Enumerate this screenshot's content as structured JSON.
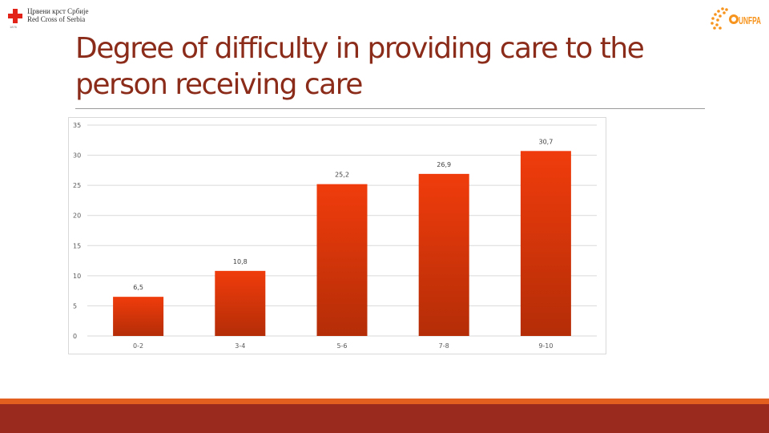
{
  "header": {
    "logo_left_line1": "Црвени крст Србије",
    "logo_left_line2": "Red Cross of Serbia",
    "logo_left_sub": "1876",
    "logo_right_text": "UNFPA",
    "title": "Degree of difficulty in providing care to the person receiving care"
  },
  "colors": {
    "title": "#8b2b19",
    "bar_top": "#f03c0c",
    "bar_bottom": "#b42d07",
    "unfpa": "#f7941d",
    "footer": "#9a2a1e"
  },
  "chart_data": {
    "type": "bar",
    "title": "",
    "xlabel": "",
    "ylabel": "",
    "categories": [
      "0-2",
      "3-4",
      "5-6",
      "7-8",
      "9-10"
    ],
    "values": [
      6.5,
      10.8,
      25.2,
      26.9,
      30.7
    ],
    "value_labels": [
      "6,5",
      "10,8",
      "25,2",
      "26,9",
      "30,7"
    ],
    "ylim": [
      0,
      35
    ],
    "yticks": [
      0,
      5,
      10,
      15,
      20,
      25,
      30,
      35
    ],
    "grid": true,
    "legend": "none"
  }
}
